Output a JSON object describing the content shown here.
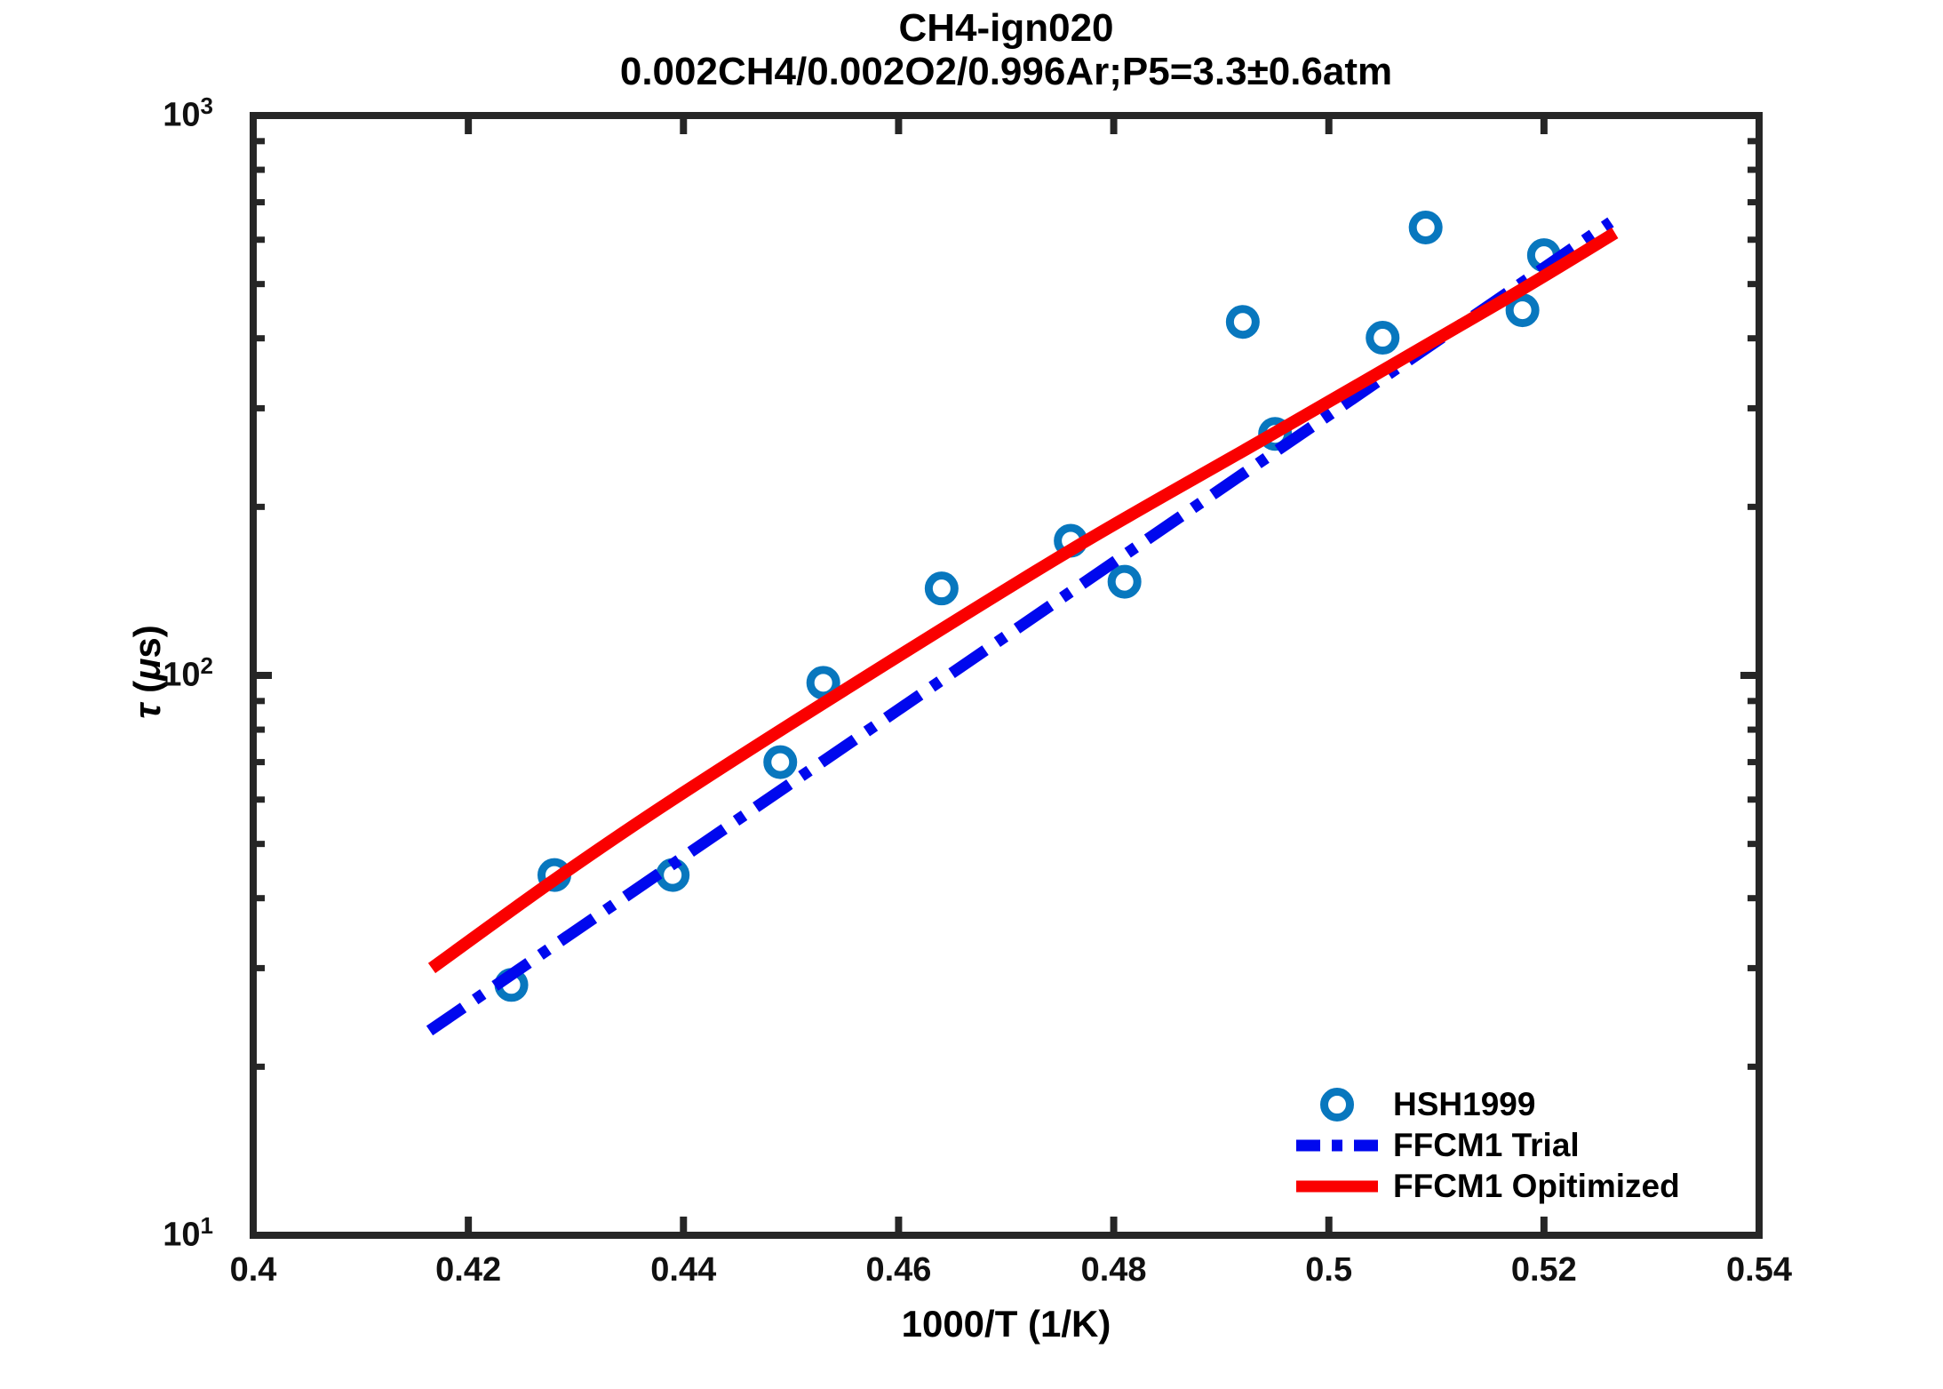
{
  "title": "CH4-ign020",
  "subtitle": "0.002CH4/0.002O2/0.996Ar;P5=3.3±0.6atm",
  "axes": {
    "xlabel": "1000/T (1/K)",
    "ylabel_parts": {
      "tau": "τ",
      "open": " (",
      "mu": "μ",
      "close": "s)"
    },
    "x_tick_values": [
      0.4,
      0.42,
      0.44,
      0.46,
      0.48,
      0.5,
      0.52,
      0.54
    ],
    "x_tick_labels": [
      "0.4",
      "0.42",
      "0.44",
      "0.46",
      "0.48",
      "0.5",
      "0.52",
      "0.54"
    ],
    "y_major_ticks": [
      {
        "base": "10",
        "exp": "1",
        "value": 10
      },
      {
        "base": "10",
        "exp": "2",
        "value": 100
      },
      {
        "base": "10",
        "exp": "3",
        "value": 1000
      }
    ],
    "y_minor_ticks": [
      20,
      30,
      40,
      50,
      60,
      70,
      80,
      90,
      200,
      300,
      400,
      500,
      600,
      700,
      800,
      900
    ]
  },
  "legend": {
    "items": [
      {
        "label": "HSH1999",
        "swatch": "circle-marker",
        "color": "#0877BE"
      },
      {
        "label": "FFCM1 Trial",
        "swatch": "dashdot-line",
        "color": "#0008EE"
      },
      {
        "label": "FFCM1 Opitimized",
        "swatch": "solid-line",
        "color": "#FA0000"
      }
    ]
  },
  "chart_data": {
    "type": "scatter",
    "title": "CH4-ign020",
    "subtitle": "0.002CH4/0.002O2/0.996Ar;P5=3.3±0.6atm",
    "xlabel": "1000/T (1/K)",
    "ylabel": "τ (μs)",
    "xlim": [
      0.4,
      0.54
    ],
    "ylim": [
      10,
      1000
    ],
    "yscale": "log",
    "grid": false,
    "legend_position": "lower-right",
    "series": [
      {
        "name": "HSH1999",
        "type": "scatter",
        "marker": "open-circle",
        "color": "#0877BE",
        "points": [
          [
            0.424,
            28
          ],
          [
            0.428,
            44
          ],
          [
            0.439,
            44
          ],
          [
            0.449,
            70
          ],
          [
            0.453,
            97
          ],
          [
            0.464,
            143
          ],
          [
            0.476,
            174
          ],
          [
            0.481,
            147
          ],
          [
            0.492,
            428
          ],
          [
            0.495,
            270
          ],
          [
            0.505,
            401
          ],
          [
            0.509,
            631
          ],
          [
            0.518,
            449
          ],
          [
            0.52,
            563
          ]
        ]
      },
      {
        "name": "FFCM1 Trial",
        "type": "line",
        "linestyle": "dashdot",
        "color": "#0008EE",
        "points": [
          [
            0.4164,
            23.2
          ],
          [
            0.5262,
            645
          ]
        ]
      },
      {
        "name": "FFCM1 Opitimized",
        "type": "line",
        "linestyle": "solid",
        "color": "#FA0000",
        "points": [
          [
            0.4166,
            30
          ],
          [
            0.4279,
            43
          ],
          [
            0.439,
            60
          ],
          [
            0.4549,
            94
          ],
          [
            0.4759,
            167
          ],
          [
            0.4948,
            270
          ],
          [
            0.5161,
            466
          ],
          [
            0.5266,
            617
          ]
        ]
      }
    ]
  },
  "style": {
    "axis_color": "#262626",
    "text_color": "#111111",
    "background": "#FFFFFF"
  }
}
